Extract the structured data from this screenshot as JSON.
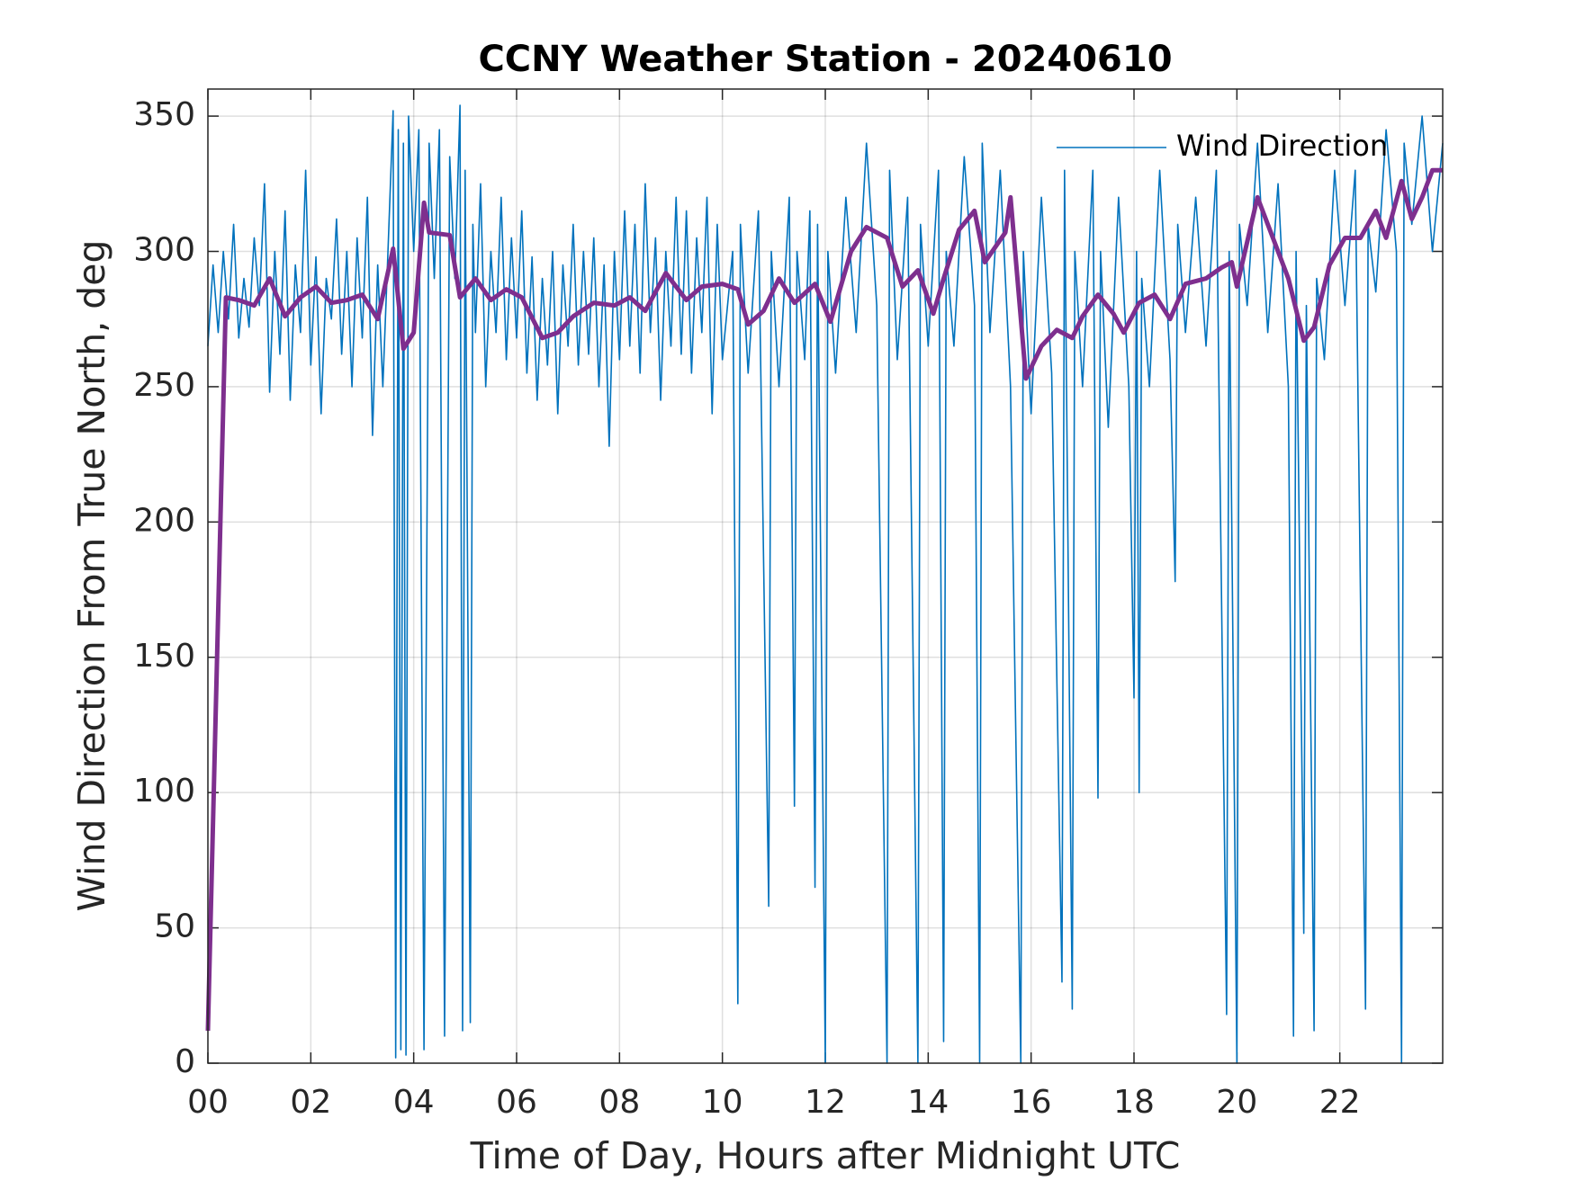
{
  "chart_data": {
    "type": "line",
    "title": "CCNY Weather Station - 20240610",
    "xlabel": "Time of Day, Hours after Midnight UTC",
    "ylabel": "Wind Direction From True North, deg",
    "xlim": [
      0,
      24
    ],
    "xticks": [
      {
        "value": 0,
        "label": "00"
      },
      {
        "value": 2,
        "label": "02"
      },
      {
        "value": 4,
        "label": "04"
      },
      {
        "value": 6,
        "label": "06"
      },
      {
        "value": 8,
        "label": "08"
      },
      10,
      12,
      14,
      16,
      18,
      20,
      22
    ],
    "ylim": [
      0,
      360
    ],
    "yticks": [
      0,
      50,
      100,
      150,
      200,
      250,
      300,
      350
    ],
    "grid": true,
    "legend": "northeast",
    "series": [
      {
        "name": "Wind Direction",
        "color": "#0072BD",
        "x": [
          0.0,
          0.1,
          0.2,
          0.3,
          0.4,
          0.5,
          0.6,
          0.7,
          0.8,
          0.9,
          1.0,
          1.1,
          1.2,
          1.3,
          1.4,
          1.5,
          1.6,
          1.7,
          1.8,
          1.9,
          2.0,
          2.1,
          2.2,
          2.3,
          2.4,
          2.5,
          2.6,
          2.7,
          2.8,
          2.9,
          3.0,
          3.1,
          3.2,
          3.3,
          3.4,
          3.5,
          3.6,
          3.65,
          3.7,
          3.75,
          3.8,
          3.85,
          3.9,
          4.0,
          4.1,
          4.2,
          4.3,
          4.4,
          4.5,
          4.6,
          4.7,
          4.8,
          4.9,
          4.95,
          5.0,
          5.1,
          5.15,
          5.2,
          5.3,
          5.4,
          5.5,
          5.6,
          5.7,
          5.8,
          5.9,
          6.0,
          6.1,
          6.2,
          6.3,
          6.4,
          6.5,
          6.6,
          6.7,
          6.8,
          6.9,
          7.0,
          7.1,
          7.2,
          7.3,
          7.4,
          7.5,
          7.6,
          7.7,
          7.8,
          7.9,
          8.0,
          8.1,
          8.2,
          8.3,
          8.4,
          8.5,
          8.6,
          8.7,
          8.8,
          8.9,
          9.0,
          9.1,
          9.2,
          9.3,
          9.4,
          9.5,
          9.6,
          9.7,
          9.8,
          9.9,
          10.0,
          10.2,
          10.3,
          10.35,
          10.5,
          10.7,
          10.9,
          10.95,
          11.1,
          11.3,
          11.4,
          11.45,
          11.6,
          11.7,
          11.8,
          11.85,
          12.0,
          12.05,
          12.2,
          12.4,
          12.6,
          12.8,
          13.0,
          13.2,
          13.25,
          13.4,
          13.6,
          13.8,
          13.85,
          14.0,
          14.2,
          14.3,
          14.35,
          14.5,
          14.7,
          14.9,
          15.0,
          15.05,
          15.2,
          15.4,
          15.6,
          15.8,
          15.85,
          16.0,
          16.2,
          16.4,
          16.6,
          16.65,
          16.8,
          16.85,
          17.0,
          17.2,
          17.3,
          17.35,
          17.5,
          17.7,
          17.9,
          18.0,
          18.05,
          18.1,
          18.15,
          18.3,
          18.5,
          18.7,
          18.8,
          18.85,
          19.0,
          19.2,
          19.4,
          19.6,
          19.8,
          19.85,
          20.0,
          20.05,
          20.2,
          20.4,
          20.6,
          20.8,
          21.0,
          21.1,
          21.15,
          21.3,
          21.35,
          21.5,
          21.55,
          21.7,
          21.9,
          22.1,
          22.3,
          22.5,
          22.55,
          22.7,
          22.9,
          23.1,
          23.2,
          23.25,
          23.4,
          23.6,
          23.8,
          24.0
        ],
        "values": [
          265,
          295,
          270,
          300,
          275,
          310,
          268,
          290,
          272,
          305,
          280,
          325,
          248,
          300,
          262,
          315,
          245,
          295,
          270,
          330,
          258,
          298,
          240,
          290,
          275,
          312,
          262,
          300,
          250,
          305,
          268,
          320,
          232,
          295,
          250,
          300,
          352,
          2,
          345,
          5,
          340,
          3,
          350,
          300,
          345,
          5,
          340,
          290,
          345,
          10,
          335,
          290,
          354,
          12,
          330,
          15,
          310,
          270,
          325,
          250,
          300,
          270,
          320,
          260,
          305,
          268,
          315,
          255,
          298,
          245,
          290,
          258,
          300,
          240,
          295,
          265,
          310,
          258,
          300,
          262,
          305,
          250,
          295,
          228,
          300,
          260,
          315,
          265,
          310,
          255,
          325,
          270,
          305,
          245,
          300,
          265,
          320,
          262,
          315,
          255,
          305,
          270,
          320,
          240,
          310,
          260,
          300,
          22,
          310,
          255,
          315,
          58,
          300,
          250,
          320,
          95,
          300,
          260,
          315,
          65,
          310,
          0,
          300,
          255,
          320,
          270,
          340,
          280,
          0,
          330,
          260,
          320,
          0,
          310,
          265,
          330,
          8,
          300,
          265,
          335,
          280,
          0,
          340,
          270,
          330,
          250,
          0,
          300,
          240,
          320,
          255,
          30,
          330,
          20,
          300,
          250,
          330,
          98,
          300,
          235,
          320,
          250,
          135,
          300,
          100,
          290,
          250,
          330,
          260,
          178,
          310,
          270,
          320,
          265,
          330,
          18,
          300,
          0,
          310,
          280,
          340,
          270,
          325,
          250,
          10,
          300,
          48,
          280,
          12,
          290,
          260,
          330,
          280,
          330,
          20,
          310,
          285,
          345,
          300,
          0,
          340,
          310,
          350,
          300,
          340
        ]
      },
      {
        "color": "#7E2F8E",
        "x": [
          0,
          0.35,
          0.6,
          0.9,
          1.2,
          1.5,
          1.8,
          2.1,
          2.4,
          2.7,
          3.0,
          3.3,
          3.6,
          3.8,
          4.0,
          4.2,
          4.3,
          4.7,
          4.9,
          5.2,
          5.5,
          5.8,
          6.1,
          6.5,
          6.8,
          7.1,
          7.5,
          7.9,
          8.2,
          8.5,
          8.9,
          9.3,
          9.6,
          10.0,
          10.3,
          10.5,
          10.8,
          11.1,
          11.4,
          11.8,
          12.1,
          12.5,
          12.8,
          13.2,
          13.5,
          13.8,
          14.1,
          14.3,
          14.6,
          14.9,
          15.1,
          15.5,
          15.6,
          15.9,
          16.2,
          16.5,
          16.8,
          17.0,
          17.3,
          17.6,
          17.8,
          18.1,
          18.4,
          18.7,
          19.0,
          19.4,
          19.7,
          19.9,
          20.0,
          20.4,
          20.7,
          21.0,
          21.3,
          21.5,
          21.8,
          22.1,
          22.4,
          22.7,
          22.9,
          23.2,
          23.4,
          23.6,
          23.8,
          24.0
        ],
        "values": [
          12,
          283,
          282,
          280,
          290,
          276,
          283,
          287,
          281,
          282,
          284,
          275,
          301,
          264,
          270,
          318,
          307,
          306,
          283,
          290,
          282,
          286,
          283,
          268,
          270,
          276,
          281,
          280,
          283,
          278,
          292,
          282,
          287,
          288,
          286,
          273,
          278,
          290,
          281,
          288,
          274,
          300,
          309,
          305,
          287,
          293,
          277,
          290,
          308,
          315,
          296,
          307,
          320,
          253,
          265,
          271,
          268,
          276,
          284,
          277,
          270,
          281,
          284,
          275,
          288,
          290,
          294,
          296,
          287,
          320,
          305,
          290,
          267,
          272,
          295,
          305,
          305,
          315,
          305,
          326,
          312,
          320,
          330,
          330
        ]
      }
    ]
  }
}
